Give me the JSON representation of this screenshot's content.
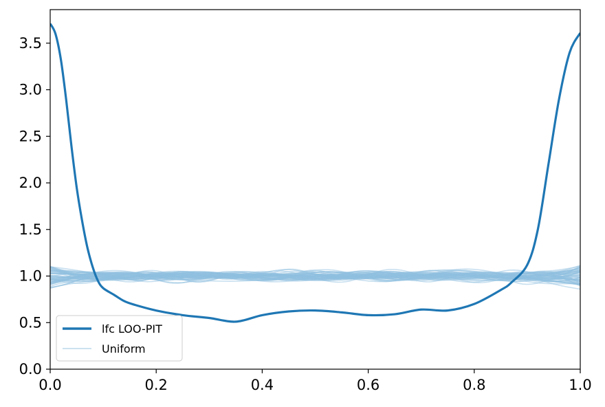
{
  "chart_data": {
    "type": "line",
    "title": "",
    "xlabel": "",
    "ylabel": "",
    "xlim": [
      0.0,
      1.0
    ],
    "ylim": [
      0.0,
      3.86
    ],
    "x_ticks": [
      "0.0",
      "0.2",
      "0.4",
      "0.6",
      "0.8",
      "1.0"
    ],
    "y_ticks": [
      "0.0",
      "0.5",
      "1.0",
      "1.5",
      "2.0",
      "2.5",
      "3.0",
      "3.5"
    ],
    "grid": false,
    "legend_position": "lower-left",
    "legend": [
      {
        "label": "lfc LOO-PIT",
        "color": "#1f77b4",
        "style": "thick"
      },
      {
        "label": "Uniform",
        "color": "#8fbfdf",
        "style": "thin"
      }
    ],
    "series": [
      {
        "name": "lfc LOO-PIT",
        "color": "#1f77b4",
        "x": [
          0.0,
          0.01,
          0.02,
          0.03,
          0.04,
          0.05,
          0.06,
          0.07,
          0.08,
          0.09,
          0.1,
          0.12,
          0.14,
          0.16,
          0.2,
          0.25,
          0.3,
          0.35,
          0.4,
          0.45,
          0.5,
          0.55,
          0.6,
          0.65,
          0.7,
          0.75,
          0.8,
          0.85,
          0.87,
          0.9,
          0.92,
          0.94,
          0.96,
          0.98,
          1.0
        ],
        "y": [
          3.71,
          3.6,
          3.33,
          2.9,
          2.4,
          1.95,
          1.6,
          1.31,
          1.1,
          0.95,
          0.87,
          0.8,
          0.73,
          0.69,
          0.63,
          0.58,
          0.55,
          0.51,
          0.58,
          0.62,
          0.63,
          0.61,
          0.58,
          0.59,
          0.64,
          0.63,
          0.7,
          0.85,
          0.93,
          1.12,
          1.5,
          2.2,
          2.9,
          3.4,
          3.61
        ]
      }
    ],
    "uniform_band": {
      "name": "Uniform",
      "color": "#8fbfdf",
      "count": 50,
      "center": 1.0,
      "spread": 0.1
    }
  }
}
